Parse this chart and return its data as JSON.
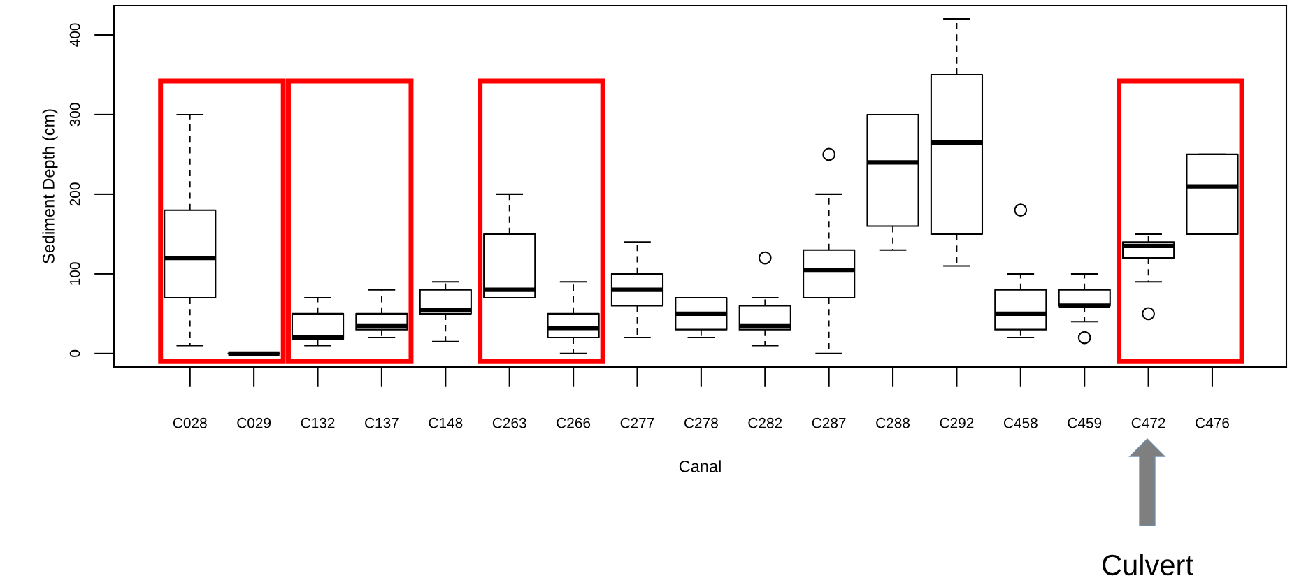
{
  "chart_data": {
    "type": "box",
    "xlabel": "Canal",
    "ylabel": "Sediment Depth (cm)",
    "categories": [
      "C028",
      "C029",
      "C132",
      "C137",
      "C148",
      "C263",
      "C266",
      "C277",
      "C278",
      "C282",
      "C287",
      "C288",
      "C292",
      "C458",
      "C459",
      "C472",
      "C476"
    ],
    "boxes": [
      {
        "low": 10,
        "q1": 70,
        "median": 120,
        "q3": 180,
        "high": 300
      },
      {
        "low": 0,
        "q1": 0,
        "median": 0,
        "q3": 0,
        "high": 0
      },
      {
        "low": 10,
        "q1": 18,
        "median": 20,
        "q3": 50,
        "high": 70
      },
      {
        "low": 20,
        "q1": 30,
        "median": 35,
        "q3": 50,
        "high": 80
      },
      {
        "low": 15,
        "q1": 50,
        "median": 55,
        "q3": 80,
        "high": 90
      },
      {
        "low": 70,
        "q1": 70,
        "median": 80,
        "q3": 150,
        "high": 200
      },
      {
        "low": 0,
        "q1": 20,
        "median": 32,
        "q3": 50,
        "high": 90
      },
      {
        "low": 20,
        "q1": 60,
        "median": 80,
        "q3": 100,
        "high": 140
      },
      {
        "low": 20,
        "q1": 30,
        "median": 50,
        "q3": 70,
        "high": 70
      },
      {
        "low": 10,
        "q1": 30,
        "median": 35,
        "q3": 60,
        "high": 70,
        "outliers": [
          120
        ]
      },
      {
        "low": 0,
        "q1": 70,
        "median": 105,
        "q3": 130,
        "high": 200,
        "outliers": [
          250
        ]
      },
      {
        "low": 130,
        "q1": 160,
        "median": 240,
        "q3": 300,
        "high": 300
      },
      {
        "low": 110,
        "q1": 150,
        "median": 265,
        "q3": 350,
        "high": 420
      },
      {
        "low": 20,
        "q1": 30,
        "median": 50,
        "q3": 80,
        "high": 100,
        "outliers": [
          180
        ]
      },
      {
        "low": 40,
        "q1": 60,
        "median": 60,
        "q3": 80,
        "high": 100,
        "outliers": [
          20
        ]
      },
      {
        "low": 90,
        "q1": 120,
        "median": 135,
        "q3": 140,
        "high": 150,
        "outliers": [
          50
        ]
      },
      {
        "low": 150,
        "q1": 150,
        "median": 210,
        "q3": 250,
        "high": 250
      }
    ],
    "ylim": [
      -16.8,
      436.8
    ],
    "yticks": [
      0,
      100,
      200,
      300,
      400
    ],
    "annotations": [
      "Culvert"
    ]
  }
}
